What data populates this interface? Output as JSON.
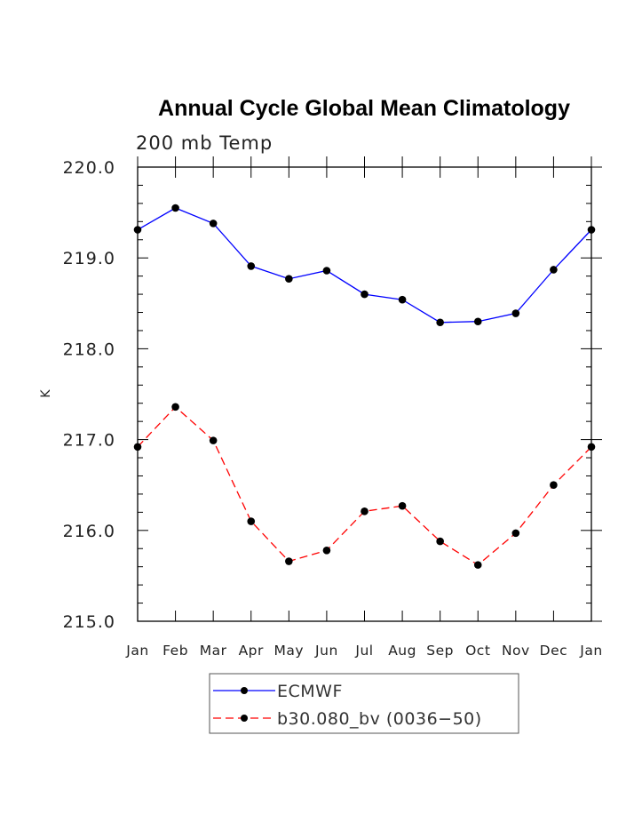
{
  "chart_data": {
    "type": "line",
    "title": "Annual Cycle Global Mean Climatology",
    "subtitle": "200 mb Temp",
    "xlabel": "",
    "ylabel": "K",
    "categories": [
      "Jan",
      "Feb",
      "Mar",
      "Apr",
      "May",
      "Jun",
      "Jul",
      "Aug",
      "Sep",
      "Oct",
      "Nov",
      "Dec",
      "Jan"
    ],
    "ylim": [
      215.0,
      220.0
    ],
    "yticks": [
      "215.0",
      "216.0",
      "217.0",
      "218.0",
      "219.0",
      "220.0"
    ],
    "grid": false,
    "legend_position": "bottom",
    "series": [
      {
        "name": "ECMWF",
        "color": "#0000ff",
        "line_style": "solid",
        "marker": "filled-circle",
        "values": [
          219.31,
          219.55,
          219.38,
          218.91,
          218.77,
          218.86,
          218.6,
          218.54,
          218.29,
          218.3,
          218.39,
          218.87,
          219.31
        ]
      },
      {
        "name": "b30.080_bv (0036−50)",
        "color": "#ff0000",
        "line_style": "dashed",
        "marker": "filled-circle",
        "values": [
          216.92,
          217.36,
          216.99,
          216.1,
          215.66,
          215.78,
          216.21,
          216.27,
          215.88,
          215.62,
          215.97,
          216.5,
          216.92
        ]
      }
    ]
  }
}
